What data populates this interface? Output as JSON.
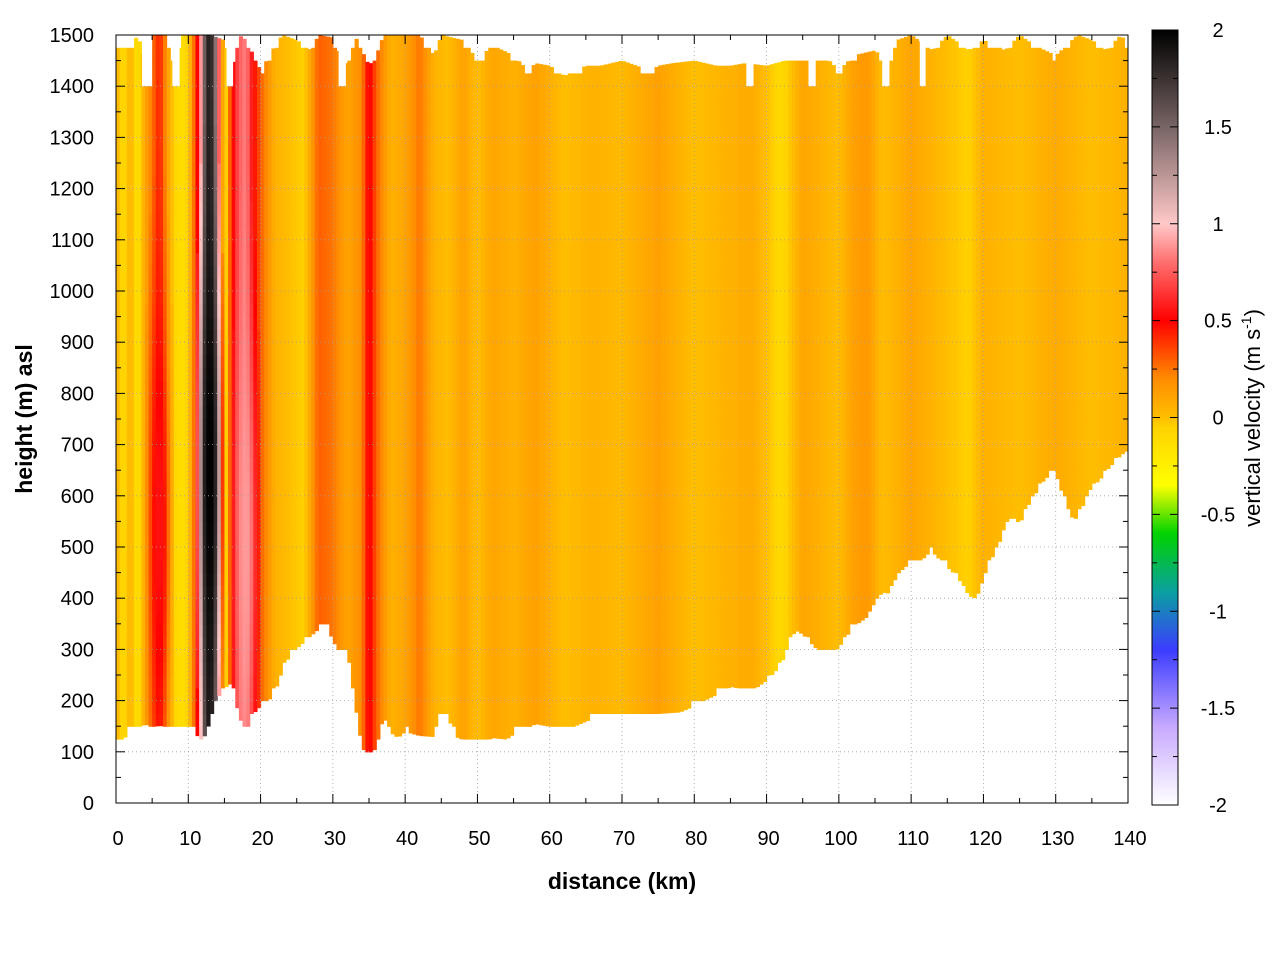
{
  "chart_data": {
    "type": "heatmap",
    "title": "",
    "xlabel": "distance (km)",
    "ylabel": "height (m) asl",
    "xlim": [
      0,
      140
    ],
    "ylim": [
      0,
      1500
    ],
    "x_ticks": [
      0,
      10,
      20,
      30,
      40,
      50,
      60,
      70,
      80,
      90,
      100,
      110,
      120,
      130,
      140
    ],
    "y_ticks": [
      0,
      100,
      200,
      300,
      400,
      500,
      600,
      700,
      800,
      900,
      1000,
      1100,
      1200,
      1300,
      1400,
      1500
    ],
    "grid": true,
    "colorbar": {
      "label_main": "vertical velocity (m s",
      "label_sup": "-1",
      "label_close": ")",
      "range": [
        -2,
        2
      ],
      "ticks": [
        "2",
        "1.5",
        "1",
        "0.5",
        "0",
        "-0.5",
        "-1",
        "-1.5",
        "-2"
      ],
      "tick_values": [
        2,
        1.5,
        1,
        0.5,
        0,
        -0.5,
        -1,
        -1.5,
        -2
      ],
      "stops": [
        {
          "v": -2.0,
          "color": "#ffffff"
        },
        {
          "v": -1.6,
          "color": "#c8aaff"
        },
        {
          "v": -1.2,
          "color": "#3c3cff"
        },
        {
          "v": -0.9,
          "color": "#0aa0a0"
        },
        {
          "v": -0.6,
          "color": "#00d200"
        },
        {
          "v": -0.35,
          "color": "#ffff00"
        },
        {
          "v": -0.05,
          "color": "#ffd200"
        },
        {
          "v": 0.0,
          "color": "#ffbe00"
        },
        {
          "v": 0.2,
          "color": "#ff8c00"
        },
        {
          "v": 0.5,
          "color": "#ff0000"
        },
        {
          "v": 0.8,
          "color": "#ff6e6e"
        },
        {
          "v": 1.0,
          "color": "#ffc8c8"
        },
        {
          "v": 1.5,
          "color": "#786464"
        },
        {
          "v": 2.0,
          "color": "#000000"
        }
      ]
    },
    "terrain_floor": [
      [
        0,
        125
      ],
      [
        1,
        122
      ],
      [
        2,
        150
      ],
      [
        3,
        145
      ],
      [
        4,
        155
      ],
      [
        5,
        148
      ],
      [
        6,
        152
      ],
      [
        8,
        145
      ],
      [
        10,
        148
      ],
      [
        11,
        135
      ],
      [
        12,
        122
      ],
      [
        13,
        160
      ],
      [
        14,
        205
      ],
      [
        15,
        225
      ],
      [
        16,
        235
      ],
      [
        17,
        170
      ],
      [
        18,
        138
      ],
      [
        19,
        175
      ],
      [
        20,
        190
      ],
      [
        21,
        198
      ],
      [
        22,
        220
      ],
      [
        24,
        290
      ],
      [
        26,
        315
      ],
      [
        28,
        340
      ],
      [
        29,
        345
      ],
      [
        30,
        320
      ],
      [
        31,
        285
      ],
      [
        32,
        300
      ],
      [
        33,
        200
      ],
      [
        34,
        110
      ],
      [
        35,
        88
      ],
      [
        36,
        110
      ],
      [
        37,
        170
      ],
      [
        38,
        138
      ],
      [
        39,
        128
      ],
      [
        40,
        140
      ],
      [
        42,
        132
      ],
      [
        44,
        130
      ],
      [
        45,
        175
      ],
      [
        46,
        165
      ],
      [
        47,
        130
      ],
      [
        49,
        118
      ],
      [
        50,
        112
      ],
      [
        51,
        118
      ],
      [
        52,
        128
      ],
      [
        54,
        125
      ],
      [
        55,
        135
      ],
      [
        56,
        150
      ],
      [
        57,
        148
      ],
      [
        58,
        155
      ],
      [
        60,
        150
      ],
      [
        62,
        140
      ],
      [
        63,
        148
      ],
      [
        65,
        160
      ],
      [
        67,
        172
      ],
      [
        68,
        170
      ],
      [
        70,
        168
      ],
      [
        72,
        175
      ],
      [
        73,
        165
      ],
      [
        75,
        175
      ],
      [
        78,
        178
      ],
      [
        80,
        190
      ],
      [
        82,
        205
      ],
      [
        84,
        218
      ],
      [
        85,
        228
      ],
      [
        86,
        225
      ],
      [
        88,
        220
      ],
      [
        90,
        240
      ],
      [
        92,
        270
      ],
      [
        93,
        310
      ],
      [
        94,
        338
      ],
      [
        95,
        330
      ],
      [
        97,
        300
      ],
      [
        98,
        292
      ],
      [
        99,
        290
      ],
      [
        100,
        305
      ],
      [
        102,
        345
      ],
      [
        104,
        365
      ],
      [
        105,
        395
      ],
      [
        106,
        412
      ],
      [
        107,
        410
      ],
      [
        108,
        445
      ],
      [
        109,
        460
      ],
      [
        110,
        470
      ],
      [
        111,
        462
      ],
      [
        112,
        485
      ],
      [
        113,
        490
      ],
      [
        114,
        475
      ],
      [
        116,
        448
      ],
      [
        117,
        430
      ],
      [
        118,
        405
      ],
      [
        119,
        400
      ],
      [
        120,
        440
      ],
      [
        121,
        475
      ],
      [
        122,
        500
      ],
      [
        123,
        545
      ],
      [
        124,
        560
      ],
      [
        125,
        545
      ],
      [
        126,
        578
      ],
      [
        127,
        600
      ],
      [
        128,
        625
      ],
      [
        129,
        640
      ],
      [
        130,
        645
      ],
      [
        131,
        600
      ],
      [
        132,
        560
      ],
      [
        133,
        555
      ],
      [
        134,
        590
      ],
      [
        135,
        620
      ],
      [
        136,
        630
      ],
      [
        137,
        650
      ],
      [
        138,
        665
      ],
      [
        139,
        680
      ],
      [
        140,
        690
      ]
    ],
    "top_edge": [
      [
        0,
        1480
      ],
      [
        2,
        1478
      ],
      [
        3,
        1500
      ],
      [
        4,
        1450
      ],
      [
        5,
        1500
      ],
      [
        7,
        1500
      ],
      [
        8,
        1440
      ],
      [
        9,
        1500
      ],
      [
        13,
        1500
      ],
      [
        15,
        1490
      ],
      [
        16,
        1430
      ],
      [
        17,
        1500
      ],
      [
        18,
        1490
      ],
      [
        20,
        1430
      ],
      [
        22,
        1480
      ],
      [
        23,
        1500
      ],
      [
        25,
        1490
      ],
      [
        27,
        1470
      ],
      [
        28,
        1500
      ],
      [
        30,
        1495
      ],
      [
        31,
        1460
      ],
      [
        32,
        1440
      ],
      [
        33,
        1500
      ],
      [
        34,
        1470
      ],
      [
        35,
        1440
      ],
      [
        36,
        1460
      ],
      [
        37,
        1500
      ],
      [
        40,
        1500
      ],
      [
        42,
        1500
      ],
      [
        44,
        1460
      ],
      [
        45,
        1500
      ],
      [
        48,
        1490
      ],
      [
        50,
        1450
      ],
      [
        52,
        1480
      ],
      [
        55,
        1460
      ],
      [
        57,
        1430
      ],
      [
        58,
        1445
      ],
      [
        60,
        1440
      ],
      [
        62,
        1420
      ],
      [
        65,
        1440
      ],
      [
        67,
        1440
      ],
      [
        70,
        1450
      ],
      [
        72,
        1440
      ],
      [
        74,
        1430
      ],
      [
        75,
        1440
      ],
      [
        77,
        1445
      ],
      [
        80,
        1450
      ],
      [
        83,
        1440
      ],
      [
        85,
        1440
      ],
      [
        87,
        1445
      ],
      [
        90,
        1440
      ],
      [
        95,
        1460
      ],
      [
        98,
        1460
      ],
      [
        100,
        1430
      ],
      [
        102,
        1460
      ],
      [
        105,
        1470
      ],
      [
        107,
        1440
      ],
      [
        108,
        1490
      ],
      [
        110,
        1500
      ],
      [
        113,
        1470
      ],
      [
        115,
        1500
      ],
      [
        118,
        1470
      ],
      [
        120,
        1490
      ],
      [
        123,
        1470
      ],
      [
        125,
        1500
      ],
      [
        127,
        1480
      ],
      [
        130,
        1460
      ],
      [
        133,
        1500
      ],
      [
        135,
        1490
      ],
      [
        137,
        1470
      ],
      [
        139,
        1500
      ],
      [
        140,
        1480
      ]
    ],
    "notches": [
      3.6,
      5.0,
      7.8,
      8.8,
      15.3,
      16.2,
      30.8,
      31.8,
      87.2,
      88.2,
      95.8,
      96.8,
      106.0,
      107.0,
      111.2,
      112.0
    ],
    "velocity_columns": [
      {
        "x": 0,
        "w": 0.05
      },
      {
        "x": 1,
        "w": -0.1
      },
      {
        "x": 2,
        "w": 0.05
      },
      {
        "x": 3,
        "w": -0.15
      },
      {
        "x": 4,
        "w": 0.1
      },
      {
        "x": 5,
        "w": 0.25
      },
      {
        "x": 6,
        "w": 0.45
      },
      {
        "x": 7,
        "w": 0.15
      },
      {
        "x": 8,
        "w": -0.05
      },
      {
        "x": 9,
        "w": -0.15
      },
      {
        "x": 10,
        "w": -0.05
      },
      {
        "x": 11,
        "w": 0.35
      },
      {
        "x": 11.6,
        "w": 0.7
      },
      {
        "x": 12.3,
        "w": 1.6
      },
      {
        "x": 13.0,
        "w": 1.95
      },
      {
        "x": 13.8,
        "w": 1.4
      },
      {
        "x": 14.5,
        "w": 0.4
      },
      {
        "x": 15,
        "w": -0.2
      },
      {
        "x": 16,
        "w": 0.45
      },
      {
        "x": 17,
        "w": 0.75
      },
      {
        "x": 18,
        "w": 0.85
      },
      {
        "x": 19,
        "w": 0.5
      },
      {
        "x": 20,
        "w": 0.3
      },
      {
        "x": 22,
        "w": 0.05
      },
      {
        "x": 24,
        "w": 0.0
      },
      {
        "x": 26,
        "w": -0.05
      },
      {
        "x": 28,
        "w": 0.3
      },
      {
        "x": 30,
        "w": 0.25
      },
      {
        "x": 32,
        "w": 0.1
      },
      {
        "x": 34,
        "w": 0.2
      },
      {
        "x": 35,
        "w": 0.55
      },
      {
        "x": 36,
        "w": 0.3
      },
      {
        "x": 38,
        "w": 0.05
      },
      {
        "x": 40,
        "w": 0.1
      },
      {
        "x": 42,
        "w": 0.25
      },
      {
        "x": 44,
        "w": 0.05
      },
      {
        "x": 46,
        "w": 0.0
      },
      {
        "x": 48,
        "w": 0.12
      },
      {
        "x": 50,
        "w": 0.0
      },
      {
        "x": 52,
        "w": 0.1
      },
      {
        "x": 55,
        "w": 0.05
      },
      {
        "x": 58,
        "w": 0.12
      },
      {
        "x": 62,
        "w": 0.0
      },
      {
        "x": 66,
        "w": 0.05
      },
      {
        "x": 70,
        "w": 0.02
      },
      {
        "x": 75,
        "w": 0.12
      },
      {
        "x": 80,
        "w": 0.0
      },
      {
        "x": 85,
        "w": 0.05
      },
      {
        "x": 88,
        "w": 0.08
      },
      {
        "x": 90,
        "w": 0.0
      },
      {
        "x": 92,
        "w": -0.1
      },
      {
        "x": 95,
        "w": 0.1
      },
      {
        "x": 100,
        "w": 0.0
      },
      {
        "x": 102,
        "w": 0.12
      },
      {
        "x": 104,
        "w": 0.15
      },
      {
        "x": 106,
        "w": 0.0
      },
      {
        "x": 110,
        "w": 0.1
      },
      {
        "x": 115,
        "w": 0.0
      },
      {
        "x": 118,
        "w": -0.05
      },
      {
        "x": 120,
        "w": 0.05
      },
      {
        "x": 125,
        "w": 0.0
      },
      {
        "x": 130,
        "w": 0.08
      },
      {
        "x": 135,
        "w": 0.0
      },
      {
        "x": 140,
        "w": 0.05
      }
    ],
    "updraft_cores": [
      {
        "x": 13.0,
        "y_center": 650,
        "w_peak": 2.0
      },
      {
        "x": 18.0,
        "y_center": 500,
        "w_peak": 0.9
      },
      {
        "x": 6.0,
        "y_center": 550,
        "w_peak": 0.55
      }
    ]
  }
}
